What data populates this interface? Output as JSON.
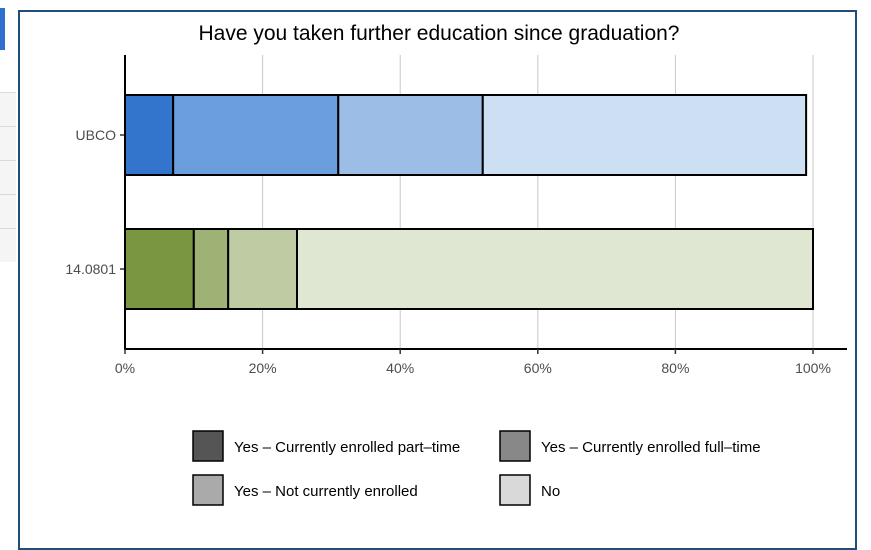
{
  "chart_data": {
    "type": "bar",
    "orientation": "horizontal",
    "stacked": true,
    "title": "Have you taken further education since graduation?",
    "categories": [
      "UBCO",
      "14.0801"
    ],
    "x_ticks": [
      "0%",
      "20%",
      "40%",
      "60%",
      "80%",
      "100%"
    ],
    "xlim": [
      0,
      100
    ],
    "grid": true,
    "legend_position": "bottom",
    "series": [
      {
        "name": "Yes – Currently enrolled part–time",
        "values": [
          7,
          10
        ],
        "colors": [
          "#3375cc",
          "#7b9640"
        ]
      },
      {
        "name": "Yes – Currently enrolled full–time",
        "values": [
          24,
          5
        ],
        "colors": [
          "#6b9edd",
          "#9fb276"
        ]
      },
      {
        "name": "Yes – Not currently enrolled",
        "values": [
          21,
          10
        ],
        "colors": [
          "#9bbde6",
          "#bfcba2"
        ]
      },
      {
        "name": "No",
        "values": [
          47,
          75
        ],
        "colors": [
          "#ccdff3",
          "#dfe6d2"
        ]
      }
    ],
    "legend_swatch_colors": [
      "#555555",
      "#888888",
      "#aaaaaa",
      "#d9d9d9"
    ]
  },
  "ui": {
    "accent_color": "#2e6fd0",
    "panel_border_color": "#1f4e79"
  }
}
